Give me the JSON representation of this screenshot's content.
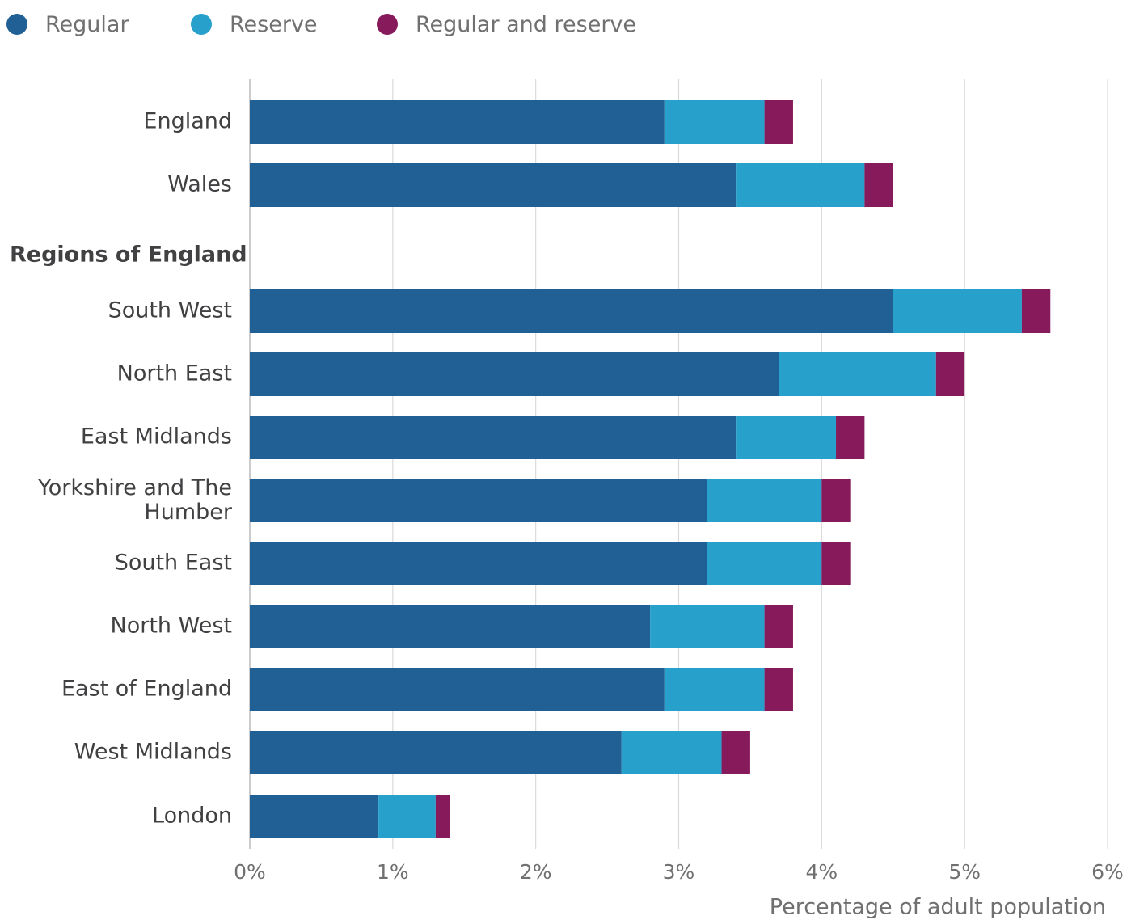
{
  "chart_data": {
    "type": "bar",
    "orientation": "horizontal",
    "stacked": true,
    "section_label": "Regions of England",
    "categories": [
      "England",
      "Wales",
      "South West",
      "North East",
      "East Midlands",
      "Yorkshire and The Humber",
      "South East",
      "North West",
      "East of England",
      "West Midlands",
      "London"
    ],
    "series": [
      {
        "name": "Regular",
        "color": "#206095",
        "values": [
          2.9,
          3.4,
          4.5,
          3.7,
          3.4,
          3.2,
          3.2,
          2.8,
          2.9,
          2.6,
          0.9
        ]
      },
      {
        "name": "Reserve",
        "color": "#27a0cc",
        "values": [
          0.7,
          0.9,
          0.9,
          1.1,
          0.7,
          0.8,
          0.8,
          0.8,
          0.7,
          0.7,
          0.4
        ]
      },
      {
        "name": "Regular and reserve",
        "color": "#871a5b",
        "values": [
          0.2,
          0.2,
          0.2,
          0.2,
          0.2,
          0.2,
          0.2,
          0.2,
          0.2,
          0.2,
          0.1
        ]
      }
    ],
    "xlabel": "Percentage of adult population",
    "xlim": [
      0,
      6
    ],
    "xticks": [
      "0%",
      "1%",
      "2%",
      "3%",
      "4%",
      "5%",
      "6%"
    ],
    "grid": "vertical",
    "legend": "top-left"
  }
}
